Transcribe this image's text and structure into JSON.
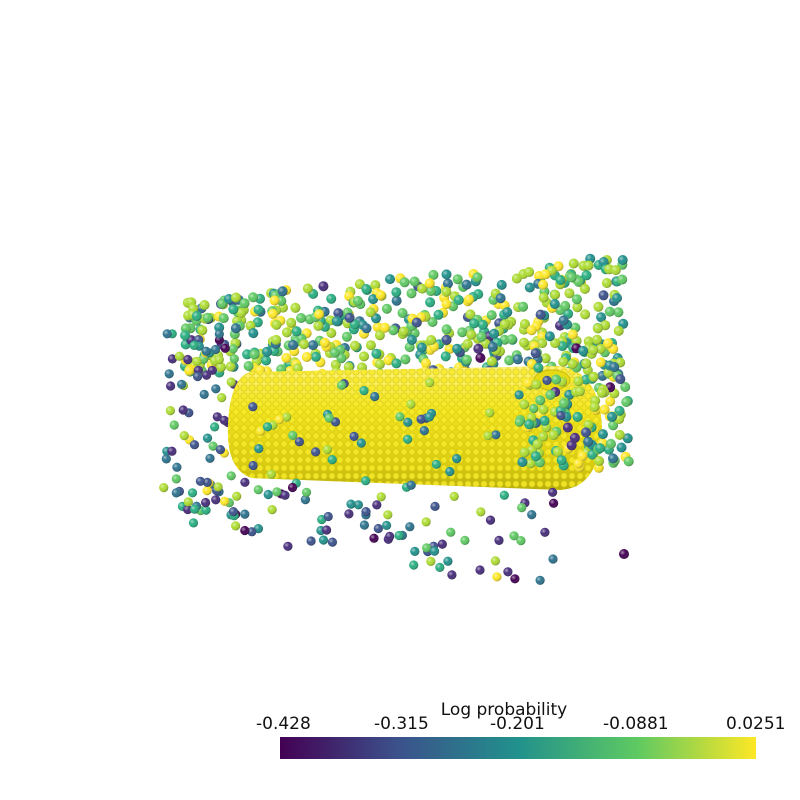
{
  "colorbar": {
    "title": "Log probability",
    "ticks": [
      "-0.428",
      "-0.315",
      "-0.201",
      "-0.0881",
      "0.0251"
    ],
    "colormap": "viridis",
    "gradient_colors": [
      "#440154",
      "#3b528b",
      "#21918c",
      "#5ec962",
      "#fde725"
    ]
  },
  "scene": {
    "description_colors": {
      "inner_cylinder": "#f2e51d",
      "background": "#ffffff"
    }
  }
}
